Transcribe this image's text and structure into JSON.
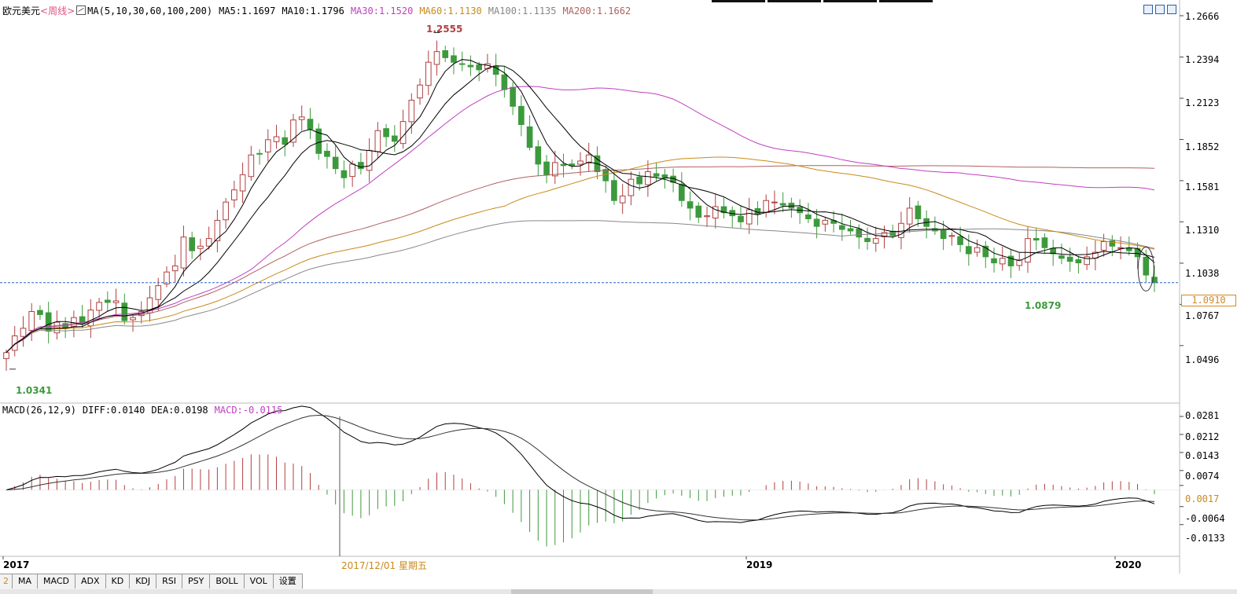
{
  "header": {
    "symbol": "欧元美元",
    "period": "<周线>",
    "ma_label": "MA(5,10,30,60,100,200)",
    "ma_values": [
      {
        "label": "MA5:1.1697",
        "color": "#000000"
      },
      {
        "label": "MA10:1.1796",
        "color": "#000000"
      },
      {
        "label": "MA30:1.1520",
        "color": "#c040c0"
      },
      {
        "label": "MA60:1.1130",
        "color": "#c98a1a"
      },
      {
        "label": "MA100:1.1135",
        "color": "#888888"
      },
      {
        "label": "MA200:1.1662",
        "color": "#b06060"
      }
    ]
  },
  "macd_header": {
    "label": "MACD(26,12,9)",
    "diff": "DIFF:0.0140",
    "dea": "DEA:0.0198",
    "macd": "MACD:-0.0115"
  },
  "price_axis": [
    "1.2666",
    "1.2394",
    "1.2123",
    "1.1852",
    "1.1581",
    "1.1310",
    "1.1038",
    "1.0767",
    "1.0496"
  ],
  "macd_axis": [
    "0.0281",
    "0.0212",
    "0.0143",
    "0.0074",
    "0.0017",
    "-0.0064",
    "-0.0133"
  ],
  "current_price": "1.0910",
  "annotations": {
    "high": "1.2555",
    "low_left": "1.0341",
    "low_right": "1.0879"
  },
  "x_axis": [
    "2017",
    "2019",
    "2020"
  ],
  "crosshair_date": "2017/12/01 星期五",
  "tabs": [
    "MA",
    "MACD",
    "ADX",
    "KD",
    "KDJ",
    "RSI",
    "PSY",
    "BOLL",
    "VOL",
    "设置"
  ],
  "tab_marker": "2",
  "colors": {
    "up": "#b04040",
    "down": "#3c9a3c",
    "ma5": "#000000",
    "ma10": "#000000",
    "ma30": "#c040c0",
    "ma60": "#c98a1a",
    "ma100": "#888888",
    "ma200": "#b06060",
    "hline": "#2a62c8",
    "grid": "#dddddd"
  },
  "chart_data": [
    {
      "type": "candlestick",
      "title": "欧元美元<周线>",
      "ylim": [
        1.034,
        1.2666
      ],
      "x_labels": [
        "2017",
        "2019",
        "2020"
      ],
      "ma_series_values": {
        "MA5": 1.1697,
        "MA10": 1.1796,
        "MA30": 1.152,
        "MA60": 1.113,
        "MA100": 1.1135,
        "MA200": 1.1662
      },
      "annotations": [
        {
          "label": "1.2555",
          "value": 1.2555
        },
        {
          "label": "1.0341",
          "value": 1.0341
        },
        {
          "label": "1.0879",
          "value": 1.0879
        }
      ],
      "current_price": 1.091,
      "closes": [
        1.045,
        1.056,
        1.061,
        1.072,
        1.07,
        1.059,
        1.065,
        1.061,
        1.068,
        1.064,
        1.073,
        1.078,
        1.078,
        1.079,
        1.066,
        1.068,
        1.072,
        1.081,
        1.089,
        1.098,
        1.102,
        1.121,
        1.112,
        1.115,
        1.12,
        1.132,
        1.144,
        1.152,
        1.162,
        1.175,
        1.176,
        1.185,
        1.187,
        1.182,
        1.198,
        1.2,
        1.192,
        1.176,
        1.174,
        1.166,
        1.16,
        1.169,
        1.166,
        1.178,
        1.191,
        1.187,
        1.184,
        1.197,
        1.211,
        1.221,
        1.236,
        1.243,
        1.239,
        1.236,
        1.235,
        1.233,
        1.231,
        1.235,
        1.228,
        1.218,
        1.207,
        1.195,
        1.18,
        1.169,
        1.162,
        1.17,
        1.168,
        1.168,
        1.171,
        1.175,
        1.164,
        1.158,
        1.145,
        1.148,
        1.159,
        1.156,
        1.164,
        1.161,
        1.16,
        1.157,
        1.145,
        1.14,
        1.134,
        1.135,
        1.141,
        1.137,
        1.135,
        1.131,
        1.139,
        1.136,
        1.145,
        1.144,
        1.142,
        1.14,
        1.137,
        1.133,
        1.128,
        1.132,
        1.13,
        1.126,
        1.125,
        1.121,
        1.118,
        1.12,
        1.124,
        1.122,
        1.13,
        1.14,
        1.133,
        1.128,
        1.125,
        1.12,
        1.122,
        1.116,
        1.11,
        1.114,
        1.108,
        1.104,
        1.107,
        1.102,
        1.106,
        1.12,
        1.119,
        1.114,
        1.11,
        1.107,
        1.105,
        1.104,
        1.108,
        1.111,
        1.118,
        1.115,
        1.114,
        1.112,
        1.108,
        1.096,
        1.091
      ]
    },
    {
      "type": "macd",
      "title": "MACD(26,12,9)",
      "ylim": [
        -0.02,
        0.029
      ],
      "values": {
        "DIFF": 0.014,
        "DEA": 0.0198,
        "MACD": -0.0115
      },
      "ticks": [
        0.0281,
        0.0212,
        0.0143,
        0.0074,
        0.0017,
        -0.0064,
        -0.0133
      ]
    }
  ]
}
